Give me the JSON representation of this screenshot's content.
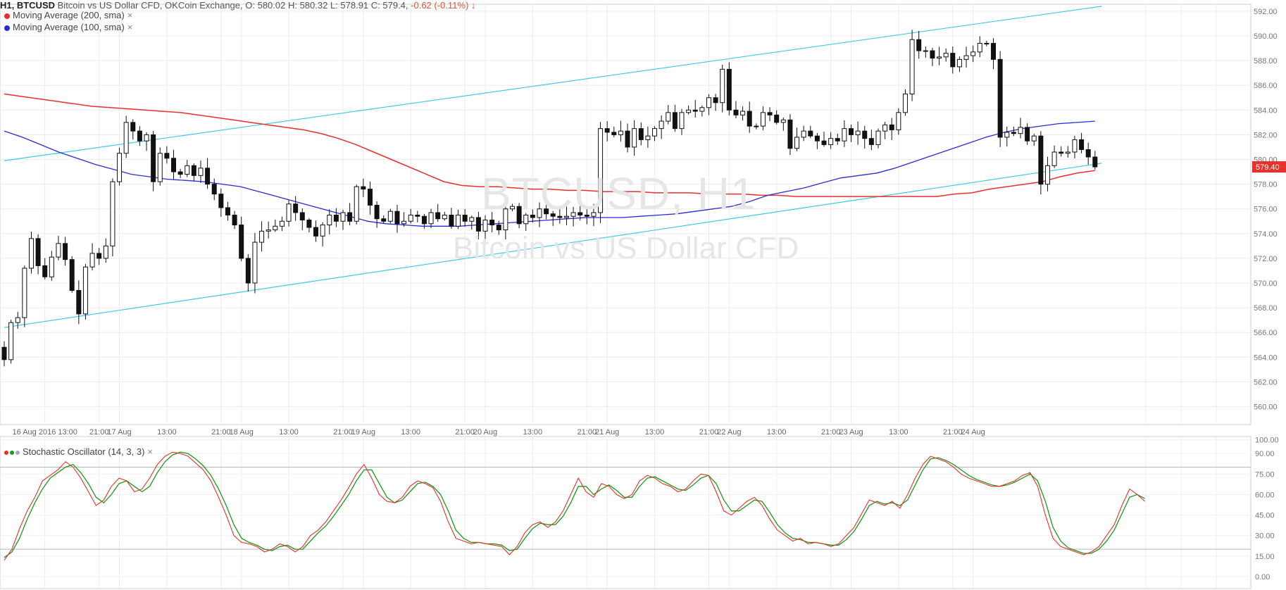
{
  "header": {
    "prefix": "H1, BTCUSD",
    "desc": "Bitcoin vs US Dollar CFD, OKCoin Exchange,",
    "ohlc": "O: 580.02 H: 580.32 L: 578.91 C: 579.4,",
    "change": "-0.62 (-0.11%)"
  },
  "legend": {
    "ma200": "Moving Average (200, sma)",
    "ma100": "Moving Average (100, sma)",
    "stoch": "Stochastic Oscillator (14, 3, 3)",
    "remove": "×"
  },
  "watermark": {
    "line1": "BTCUSD, H1",
    "line2": "Bitcoin vs US Dollar CFD"
  },
  "colors": {
    "ma200": "#e8302c",
    "ma100": "#2b2bd6",
    "channel": "#3fc8e8",
    "stoch_k": "#e8302c",
    "stoch_d": "#1a9a1a",
    "last_price_bg": "#e8302c"
  },
  "chart_data": [
    {
      "type": "candlestick",
      "ylim": [
        559,
        592
      ],
      "yticks": [
        "592.00",
        "590.00",
        "588.00",
        "586.00",
        "584.00",
        "582.00",
        "580.00",
        "578.00",
        "576.00",
        "574.00",
        "572.00",
        "570.00",
        "568.00",
        "566.00",
        "564.00",
        "562.00",
        "560.00"
      ],
      "xticks": [
        {
          "label": "16 Aug 2016 13:00",
          "i": 6
        },
        {
          "label": "21:00",
          "i": 14
        },
        {
          "label": "17 Aug",
          "i": 17
        },
        {
          "label": "13:00",
          "i": 24
        },
        {
          "label": "21:00",
          "i": 32
        },
        {
          "label": "18 Aug",
          "i": 35
        },
        {
          "label": "13:00",
          "i": 42
        },
        {
          "label": "21:00",
          "i": 50
        },
        {
          "label": "19 Aug",
          "i": 53
        },
        {
          "label": "13:00",
          "i": 60
        },
        {
          "label": "21:00",
          "i": 68
        },
        {
          "label": "20 Aug",
          "i": 71
        },
        {
          "label": "13:00",
          "i": 78
        },
        {
          "label": "21:00",
          "i": 86
        },
        {
          "label": "21 Aug",
          "i": 89
        },
        {
          "label": "13:00",
          "i": 96
        },
        {
          "label": "21:00",
          "i": 104
        },
        {
          "label": "22 Aug",
          "i": 107
        },
        {
          "label": "13:00",
          "i": 114
        },
        {
          "label": "21:00",
          "i": 122
        },
        {
          "label": "23 Aug",
          "i": 125
        },
        {
          "label": "13:00",
          "i": 132
        },
        {
          "label": "21:00",
          "i": 140
        },
        {
          "label": "24 Aug",
          "i": 143
        }
      ],
      "last_price": "579.40",
      "close": [
        563.8,
        566.8,
        567.2,
        571.2,
        573.6,
        571.4,
        570.5,
        572.1,
        573.2,
        571.9,
        569.4,
        567.5,
        571.3,
        572.4,
        572.0,
        573.0,
        578.2,
        580.5,
        583.0,
        582.3,
        581.5,
        582.0,
        578.2,
        580.5,
        580.1,
        579.0,
        578.8,
        579.5,
        578.7,
        579.3,
        578.0,
        577.2,
        576.1,
        575.5,
        574.7,
        572.0,
        570.0,
        573.3,
        574.2,
        574.3,
        574.6,
        575.0,
        576.4,
        575.7,
        575.1,
        574.5,
        573.8,
        574.7,
        575.5,
        575.0,
        575.7,
        575.0,
        577.8,
        577.6,
        576.3,
        575.2,
        575.0,
        575.8,
        574.8,
        575.0,
        575.5,
        575.4,
        574.8,
        575.7,
        575.2,
        575.5,
        574.6,
        575.5,
        575.0,
        575.3,
        574.2,
        575.1,
        574.7,
        574.3,
        576.0,
        576.2,
        574.8,
        575.5,
        575.3,
        576.0,
        575.6,
        575.4,
        575.3,
        575.4,
        575.7,
        575.5,
        575.4,
        575.7,
        582.5,
        582.2,
        582.0,
        582.3,
        581.0,
        582.5,
        581.6,
        581.9,
        582.5,
        583.1,
        583.8,
        582.5,
        583.8,
        584.0,
        583.9,
        584.2,
        585.0,
        584.6,
        587.3,
        584.0,
        583.6,
        583.9,
        582.7,
        582.7,
        583.8,
        583.6,
        583.0,
        583.2,
        580.9,
        581.8,
        582.3,
        581.9,
        581.5,
        581.2,
        581.7,
        581.5,
        582.5,
        582.0,
        582.3,
        581.7,
        581.2,
        582.3,
        582.8,
        582.4,
        583.8,
        585.3,
        589.7,
        588.8,
        588.8,
        588.2,
        588.3,
        588.6,
        587.5,
        588.1,
        588.4,
        588.7,
        589.4,
        589.4,
        588.1,
        581.8,
        582.2,
        582.1,
        582.6,
        581.5,
        581.9,
        578.0,
        579.5,
        580.6,
        580.5,
        580.6,
        581.6,
        580.8,
        580.2,
        579.4
      ],
      "ma100": [
        582.3,
        581.8,
        581.2,
        580.6,
        580.1,
        579.6,
        579.2,
        578.8,
        578.6,
        578.4,
        578.3,
        578.2,
        578.0,
        577.8,
        577.4,
        577.0,
        576.6,
        576.2,
        575.8,
        575.4,
        575.0,
        574.8,
        574.7,
        574.6,
        574.6,
        574.6,
        574.7,
        574.8,
        574.9,
        575.0,
        575.1,
        575.2,
        575.3,
        575.3,
        575.3,
        575.4,
        575.5,
        575.6,
        575.8,
        576.0,
        576.2,
        576.6,
        577.1,
        577.4,
        577.7,
        578.1,
        578.5,
        578.7,
        578.9,
        579.3,
        579.8,
        580.3,
        580.8,
        581.3,
        581.8,
        582.2,
        582.5,
        582.7,
        582.9,
        583.0,
        583.1
      ],
      "ma200": [
        585.3,
        585.1,
        584.9,
        584.7,
        584.5,
        584.3,
        584.2,
        584.1,
        584.0,
        583.9,
        583.8,
        583.6,
        583.4,
        583.2,
        583.0,
        582.8,
        582.6,
        582.4,
        582.1,
        581.7,
        581.2,
        580.6,
        580.0,
        579.4,
        578.8,
        578.2,
        577.9,
        577.8,
        577.8,
        577.7,
        577.6,
        577.6,
        577.5,
        577.5,
        577.4,
        577.4,
        577.4,
        577.3,
        577.3,
        577.3,
        577.2,
        577.2,
        577.2,
        577.1,
        577.1,
        577.0,
        577.0,
        577.0,
        577.0,
        577.0,
        577.0,
        577.0,
        577.0,
        577.0,
        577.2,
        577.3,
        577.6,
        577.8,
        578.0,
        578.2,
        578.6,
        578.9,
        579.1
      ],
      "channel_upper": [
        [
          0,
          579.9
        ],
        [
          162,
          592.4
        ]
      ],
      "channel_lower": [
        [
          0,
          566.4
        ],
        [
          162,
          579.7
        ]
      ]
    },
    {
      "type": "line",
      "name": "Stochastic Oscillator (14, 3, 3)",
      "ylim": [
        0,
        100
      ],
      "yticks": [
        "100.00",
        "90.00",
        "75.00",
        "60.00",
        "45.00",
        "30.00",
        "15.00",
        "0.00"
      ],
      "levels": [
        20,
        80
      ],
      "k": [
        12,
        20,
        35,
        48,
        58,
        70,
        74,
        78,
        84,
        80,
        72,
        62,
        52,
        56,
        66,
        72,
        70,
        62,
        64,
        72,
        82,
        88,
        91,
        90,
        88,
        83,
        78,
        70,
        58,
        45,
        30,
        25,
        24,
        22,
        18,
        20,
        24,
        22,
        18,
        22,
        30,
        34,
        40,
        48,
        56,
        65,
        75,
        82,
        72,
        60,
        55,
        54,
        58,
        66,
        70,
        68,
        65,
        55,
        40,
        28,
        26,
        24,
        25,
        24,
        23,
        22,
        16,
        22,
        32,
        38,
        40,
        36,
        40,
        48,
        60,
        72,
        62,
        58,
        68,
        66,
        60,
        57,
        60,
        70,
        74,
        72,
        68,
        66,
        62,
        64,
        70,
        75,
        74,
        62,
        48,
        45,
        50,
        55,
        58,
        52,
        42,
        34,
        30,
        26,
        28,
        24,
        25,
        24,
        22,
        24,
        30,
        36,
        46,
        56,
        54,
        52,
        55,
        50,
        60,
        72,
        82,
        88,
        86,
        84,
        80,
        75,
        72,
        70,
        68,
        66,
        66,
        68,
        70,
        74,
        76,
        66,
        45,
        28,
        22,
        20,
        18,
        16,
        18,
        22,
        30,
        38,
        52,
        64,
        60,
        55
      ],
      "d": [
        14,
        18,
        28,
        42,
        54,
        64,
        72,
        76,
        80,
        82,
        76,
        68,
        58,
        54,
        60,
        68,
        70,
        66,
        62,
        66,
        76,
        84,
        89,
        91,
        90,
        86,
        81,
        74,
        64,
        52,
        38,
        28,
        25,
        23,
        20,
        19,
        22,
        23,
        20,
        20,
        26,
        32,
        37,
        44,
        52,
        60,
        70,
        78,
        78,
        68,
        58,
        54,
        56,
        62,
        68,
        69,
        66,
        60,
        48,
        34,
        28,
        25,
        25,
        24,
        24,
        23,
        19,
        20,
        28,
        35,
        39,
        38,
        38,
        44,
        54,
        66,
        66,
        60,
        64,
        67,
        63,
        58,
        58,
        66,
        72,
        73,
        70,
        67,
        64,
        63,
        67,
        72,
        74,
        68,
        56,
        48,
        48,
        52,
        56,
        55,
        47,
        38,
        32,
        28,
        27,
        25,
        25,
        24,
        23,
        23,
        27,
        33,
        42,
        52,
        55,
        53,
        54,
        52,
        56,
        67,
        78,
        86,
        87,
        85,
        82,
        78,
        74,
        71,
        69,
        67,
        66,
        67,
        69,
        72,
        75,
        70,
        55,
        36,
        26,
        21,
        19,
        17,
        17,
        20,
        26,
        34,
        46,
        58,
        60,
        57
      ]
    }
  ]
}
